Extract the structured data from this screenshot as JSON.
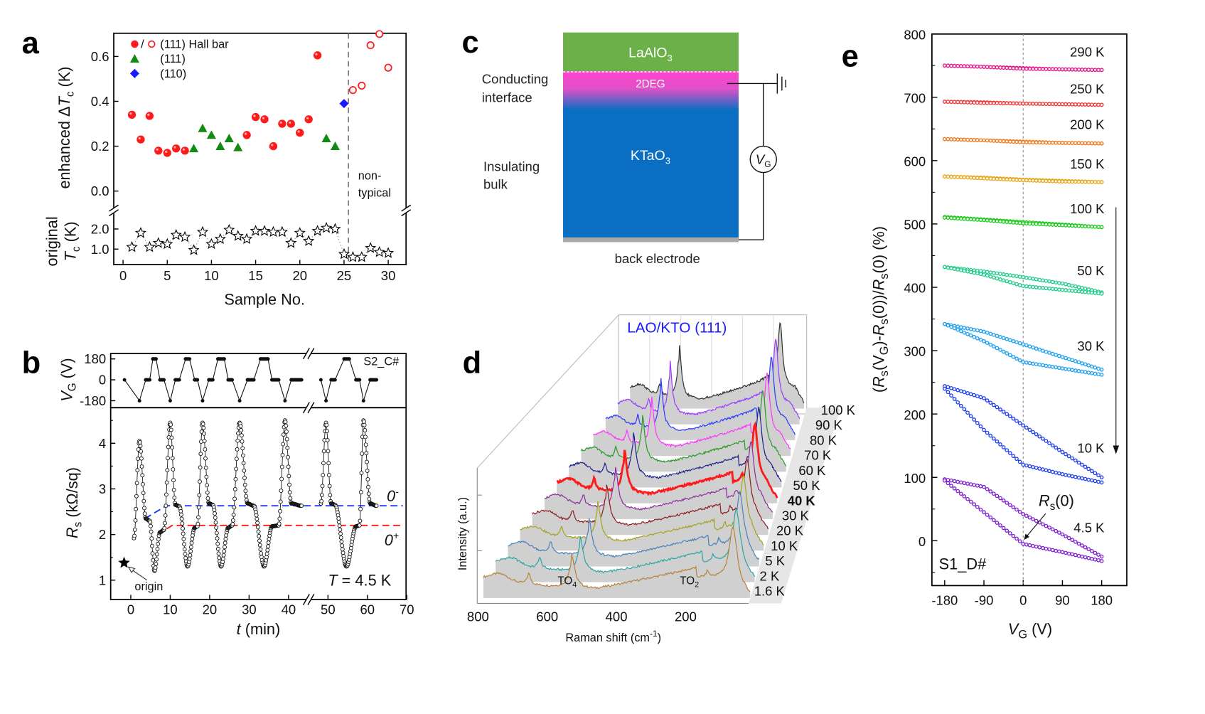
{
  "panel_labels": {
    "a": "a",
    "b": "b",
    "c": "c",
    "d": "d",
    "e": "e"
  },
  "colors": {
    "red": "#ff1a1a",
    "green": "#138a13",
    "blue": "#1a1aff",
    "zero_minus": "#1a3cff",
    "zero_plus": "#ff1a1a",
    "lao": "#6cb04a",
    "kto": "#0a6fc2",
    "two_deg": "#ff44cc",
    "title_d": "#1a1aff"
  },
  "chart_data": [
    {
      "id": "a",
      "type": "scatter",
      "xlabel": "Sample No.",
      "ylabel_upper": {
        "pre": "enhanced Δ",
        "sym": "T",
        "sub": "c",
        "post": " (K)"
      },
      "ylabel_lower": {
        "line1": "original",
        "sym": "T",
        "sub": "c",
        "post": " (K)"
      },
      "xticks": [
        "0",
        "5",
        "10",
        "15",
        "20",
        "25",
        "30"
      ],
      "yticks_upper": [
        "0.0",
        "0.2",
        "0.4",
        "0.6"
      ],
      "yticks_lower": [
        "1.0",
        "2.0"
      ],
      "xlim": [
        -1,
        32
      ],
      "ylim_upper": [
        -0.085,
        0.7
      ],
      "ylim_lower": [
        0.2,
        2.9
      ],
      "legend": [
        {
          "label": "(111) Hall bar",
          "marker": "red-filled/open-circle",
          "sep": "/"
        },
        {
          "label": "(111)",
          "marker": "green-triangle"
        },
        {
          "label": "(110)",
          "marker": "blue-diamond"
        }
      ],
      "annotation": [
        "non-",
        "typical"
      ],
      "divider_x": 25.5,
      "series": [
        {
          "name": "(111) Hall bar",
          "marker": "filled-circle",
          "color": "#ff1a1a",
          "points": [
            [
              1,
              0.34
            ],
            [
              2,
              0.23
            ],
            [
              3,
              0.335
            ],
            [
              4,
              0.18
            ],
            [
              5,
              0.17
            ],
            [
              6,
              0.19
            ],
            [
              7,
              0.18
            ],
            [
              14,
              0.25
            ],
            [
              15,
              0.33
            ],
            [
              16,
              0.32
            ],
            [
              17,
              0.2
            ],
            [
              18,
              0.3
            ],
            [
              19,
              0.3
            ],
            [
              20,
              0.26
            ],
            [
              21,
              0.32
            ],
            [
              22,
              0.605
            ]
          ]
        },
        {
          "name": "(111)",
          "marker": "triangle",
          "color": "#138a13",
          "points": [
            [
              8,
              0.19
            ],
            [
              9,
              0.28
            ],
            [
              10,
              0.25
            ],
            [
              11,
              0.2
            ],
            [
              12,
              0.235
            ],
            [
              13,
              0.195
            ],
            [
              23,
              0.235
            ],
            [
              24,
              0.2
            ]
          ]
        },
        {
          "name": "(110)",
          "marker": "diamond",
          "color": "#1a1aff",
          "points": [
            [
              25,
              0.39
            ]
          ]
        },
        {
          "name": "(111) Hall bar non-typical",
          "marker": "open-circle",
          "color": "#ff1a1a",
          "points": [
            [
              26,
              0.45
            ],
            [
              27,
              0.47
            ],
            [
              28,
              0.65
            ],
            [
              29,
              0.7
            ],
            [
              30,
              0.55
            ]
          ]
        },
        {
          "name": "original Tc",
          "marker": "open-star",
          "color": "#000000",
          "points": [
            [
              1,
              1.1
            ],
            [
              2,
              1.8
            ],
            [
              3,
              1.1
            ],
            [
              4,
              1.3
            ],
            [
              5,
              1.25
            ],
            [
              6,
              1.7
            ],
            [
              7,
              1.6
            ],
            [
              8,
              0.95
            ],
            [
              9,
              1.85
            ],
            [
              10,
              1.25
            ],
            [
              11,
              1.5
            ],
            [
              12,
              1.95
            ],
            [
              13,
              1.65
            ],
            [
              14,
              1.5
            ],
            [
              15,
              1.9
            ],
            [
              16,
              1.9
            ],
            [
              17,
              1.85
            ],
            [
              18,
              1.85
            ],
            [
              19,
              1.3
            ],
            [
              20,
              1.8
            ],
            [
              21,
              1.4
            ],
            [
              22,
              1.9
            ],
            [
              23,
              2.05
            ],
            [
              24,
              2.0
            ],
            [
              25,
              0.75
            ],
            [
              26,
              0.6
            ],
            [
              27,
              0.6
            ],
            [
              28,
              1.05
            ],
            [
              29,
              0.85
            ],
            [
              30,
              0.8
            ]
          ]
        }
      ]
    },
    {
      "id": "b",
      "type": "line",
      "tag": "S2_C#",
      "xlabel": {
        "sym": "t",
        "post": " (min)"
      },
      "ylabel_top": {
        "sym": "V",
        "sub": "G",
        "post": " (V)"
      },
      "ylabel_bottom": {
        "sym": "R",
        "sub": "s",
        "post": " (kΩ/sq)"
      },
      "xticks": [
        "0",
        "10",
        "20",
        "30",
        "40",
        "50",
        "60",
        "70"
      ],
      "yticks_top": [
        "180",
        "0",
        "-180"
      ],
      "yticks_bottom": [
        "1",
        "2",
        "3",
        "4"
      ],
      "xlim": [
        -5,
        70
      ],
      "ylim_bottom": [
        0.57,
        4.78
      ],
      "temperature": {
        "sym": "T",
        "post": " = 4.5 K"
      },
      "origin_label": "origin",
      "origin_point": [
        -1.7,
        1.38
      ],
      "zero_minus": {
        "base": "0",
        "sup": "-",
        "level": 2.63
      },
      "zero_plus": {
        "base": "0",
        "sup": "+",
        "level": 2.2
      },
      "vg_segments": [
        [
          [
            -1.6,
            0
          ],
          [
            2.2,
            -180
          ],
          [
            3.8,
            0
          ],
          [
            4.8,
            0
          ],
          [
            5.6,
            180
          ],
          [
            6.4,
            180
          ],
          [
            7.4,
            0
          ],
          [
            8.4,
            0
          ],
          [
            10,
            -180
          ],
          [
            11.3,
            0
          ],
          [
            12.3,
            0
          ],
          [
            13.9,
            180
          ],
          [
            14.9,
            180
          ],
          [
            16.2,
            0
          ],
          [
            16.9,
            0
          ],
          [
            18.2,
            -180
          ],
          [
            19.8,
            0
          ],
          [
            20.8,
            0
          ],
          [
            22.1,
            180
          ],
          [
            23.7,
            180
          ],
          [
            24.7,
            0
          ],
          [
            25.7,
            0
          ],
          [
            27.6,
            -180
          ],
          [
            29.6,
            0
          ],
          [
            31.2,
            0
          ],
          [
            32.9,
            180
          ],
          [
            34.8,
            180
          ],
          [
            35.8,
            0
          ],
          [
            37.5,
            0
          ],
          [
            39.1,
            -180
          ],
          [
            40.7,
            0
          ],
          [
            43.3,
            0
          ]
        ],
        [
          [
            48.2,
            0
          ],
          [
            49.5,
            -180
          ],
          [
            50.8,
            0
          ],
          [
            51.8,
            0
          ],
          [
            54.1,
            180
          ],
          [
            55.4,
            180
          ],
          [
            57.1,
            0
          ],
          [
            58,
            0
          ],
          [
            59,
            -180
          ],
          [
            60.7,
            0
          ],
          [
            62.3,
            0
          ]
        ]
      ],
      "rs_segments": [
        [
          [
            0.8,
            1.92
          ],
          [
            2.2,
            4.05
          ],
          [
            3.8,
            2.35
          ],
          [
            4.8,
            2.3
          ],
          [
            6,
            1.2
          ],
          [
            7.4,
            2.05
          ],
          [
            8.4,
            2.1
          ],
          [
            10,
            4.45
          ],
          [
            11.3,
            2.65
          ],
          [
            12.3,
            2.62
          ],
          [
            14.4,
            1.3
          ],
          [
            16.2,
            2.15
          ],
          [
            16.9,
            2.18
          ],
          [
            18.2,
            4.45
          ],
          [
            19.8,
            2.68
          ],
          [
            20.8,
            2.65
          ],
          [
            22.9,
            1.3
          ],
          [
            24.7,
            2.15
          ],
          [
            25.7,
            2.2
          ],
          [
            27.6,
            4.45
          ],
          [
            29.6,
            2.68
          ],
          [
            31.2,
            2.63
          ],
          [
            33.8,
            1.3
          ],
          [
            35.8,
            2.18
          ],
          [
            37.5,
            2.2
          ],
          [
            39.1,
            4.5
          ],
          [
            40.7,
            2.68
          ],
          [
            43.3,
            2.63
          ]
        ],
        [
          [
            48.2,
            2.68
          ],
          [
            49.5,
            4.45
          ],
          [
            50.8,
            2.68
          ],
          [
            51.8,
            2.65
          ],
          [
            54.7,
            1.3
          ],
          [
            57.1,
            2.18
          ],
          [
            58,
            2.2
          ],
          [
            59,
            4.5
          ],
          [
            60.7,
            2.68
          ],
          [
            62.3,
            2.63
          ]
        ]
      ]
    },
    {
      "id": "d",
      "type": "line",
      "title": "LAO/KTO (111)",
      "xlabel": {
        "pre": "Raman shift (cm",
        "sup": "-1",
        "post": ")"
      },
      "ylabel": "Intensity (a.u.)",
      "xticks": [
        "800",
        "600",
        "400",
        "200"
      ],
      "xlim": [
        800,
        30
      ],
      "peak_labels": [
        {
          "base": "TO",
          "sub": "4"
        },
        {
          "base": "TO",
          "sub": "2"
        }
      ],
      "series": [
        {
          "name": "1.6 K",
          "color": "#b5823a"
        },
        {
          "name": "2 K",
          "color": "#2aa5a5"
        },
        {
          "name": "5 K",
          "color": "#4a80b8"
        },
        {
          "name": "10 K",
          "color": "#a3a31f"
        },
        {
          "name": "20 K",
          "color": "#8c1c1c"
        },
        {
          "name": "30 K",
          "color": "#8e2a9e"
        },
        {
          "name": "40 K",
          "color": "#ff1a1a",
          "highlight": true
        },
        {
          "name": "50 K",
          "color": "#1e1e8c"
        },
        {
          "name": "60 K",
          "color": "#2a9b2a"
        },
        {
          "name": "70 K",
          "color": "#ff33ff"
        },
        {
          "name": "80 K",
          "color": "#2a3aff"
        },
        {
          "name": "90 K",
          "color": "#9b3aff"
        },
        {
          "name": "100 K",
          "color": "#333333"
        }
      ]
    },
    {
      "id": "e",
      "type": "line",
      "tag": "S1_D#",
      "xlabel": {
        "sym": "V",
        "sub": "G",
        "post": " (V)"
      },
      "ylabel": {
        "p1": "(",
        "s1": "R",
        "b1": "s",
        "p2": "(V",
        "b2": "G",
        "p3": ")-",
        "s2": "R",
        "b3": "s",
        "p4": "(0))/",
        "s3": "R",
        "b4": "s",
        "p5": "(0) (%)"
      },
      "xticks": [
        "-180",
        "-90",
        "0",
        "90",
        "180"
      ],
      "yticks": [
        "0",
        "100",
        "200",
        "300",
        "400",
        "500",
        "600",
        "700",
        "800"
      ],
      "xlim": [
        -207,
        221
      ],
      "ylim": [
        -71,
        800
      ],
      "annotation": {
        "sym": "R",
        "sub": "s",
        "post": "(0)"
      },
      "x_values": [
        -180,
        -90,
        0,
        90,
        180
      ],
      "series": [
        {
          "name": "290 K",
          "color": "#e8188c",
          "upper": [
            750,
            748,
            746,
            744,
            743
          ],
          "lower": [
            750,
            748,
            745,
            744,
            743
          ]
        },
        {
          "name": "250 K",
          "color": "#f23a3a",
          "upper": [
            693,
            692,
            690,
            689,
            688
          ],
          "lower": [
            693,
            691,
            690,
            689,
            688
          ]
        },
        {
          "name": "200 K",
          "color": "#f07a1e",
          "upper": [
            634,
            632,
            630,
            628,
            627
          ],
          "lower": [
            634,
            632,
            629,
            628,
            627
          ]
        },
        {
          "name": "150 K",
          "color": "#e8a61e",
          "upper": [
            575,
            573,
            570,
            568,
            566
          ],
          "lower": [
            575,
            572,
            569,
            567,
            566
          ]
        },
        {
          "name": "100 K",
          "color": "#1ecc1e",
          "upper": [
            511,
            507,
            503,
            499,
            495
          ],
          "lower": [
            510,
            506,
            501,
            498,
            495
          ]
        },
        {
          "name": "50 K",
          "color": "#1ecc8a",
          "upper": [
            432,
            425,
            416,
            406,
            392
          ],
          "lower": [
            432,
            420,
            402,
            396,
            390
          ]
        },
        {
          "name": "30 K",
          "color": "#1ea0f0",
          "upper": [
            342,
            330,
            310,
            290,
            270
          ],
          "lower": [
            342,
            315,
            282,
            272,
            262
          ]
        },
        {
          "name": "10 K",
          "color": "#2040f0",
          "upper": [
            244,
            225,
            182,
            140,
            100
          ],
          "lower": [
            240,
            175,
            120,
            105,
            92
          ]
        },
        {
          "name": "4.5 K",
          "color": "#8020d0",
          "upper": [
            97,
            85,
            42,
            10,
            -25
          ],
          "lower": [
            95,
            45,
            -5,
            -18,
            -32
          ]
        }
      ]
    }
  ],
  "panel_c": {
    "lao": {
      "base": "LaAlO",
      "sub": "3"
    },
    "kto": {
      "base": "KTaO",
      "sub": "3"
    },
    "two_deg": "2DEG",
    "conducting": [
      "Conducting",
      "interface"
    ],
    "insulating": [
      "Insulating",
      "bulk"
    ],
    "back_electrode": "back electrode",
    "gate": {
      "sym": "V",
      "sub": "G"
    }
  }
}
